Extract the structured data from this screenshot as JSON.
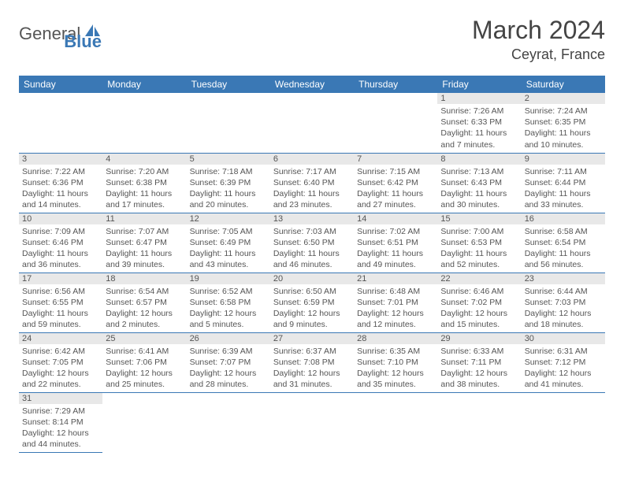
{
  "logo": {
    "general": "General",
    "blue": "Blue"
  },
  "title": "March 2024",
  "location": "Ceyrat, France",
  "weekdays": [
    "Sunday",
    "Monday",
    "Tuesday",
    "Wednesday",
    "Thursday",
    "Friday",
    "Saturday"
  ],
  "colors": {
    "header_bg": "#3a78b5",
    "header_fg": "#ffffff",
    "daynum_bg": "#e8e8e8",
    "text": "#555555",
    "border": "#3a78b5"
  },
  "fonts": {
    "title_size": 32,
    "location_size": 18,
    "weekday_size": 12,
    "cell_size": 10.5
  },
  "cells": [
    [
      null,
      null,
      null,
      null,
      null,
      {
        "n": "1",
        "sr": "7:26 AM",
        "ss": "6:33 PM",
        "dl": "11 hours and 7 minutes."
      },
      {
        "n": "2",
        "sr": "7:24 AM",
        "ss": "6:35 PM",
        "dl": "11 hours and 10 minutes."
      }
    ],
    [
      {
        "n": "3",
        "sr": "7:22 AM",
        "ss": "6:36 PM",
        "dl": "11 hours and 14 minutes."
      },
      {
        "n": "4",
        "sr": "7:20 AM",
        "ss": "6:38 PM",
        "dl": "11 hours and 17 minutes."
      },
      {
        "n": "5",
        "sr": "7:18 AM",
        "ss": "6:39 PM",
        "dl": "11 hours and 20 minutes."
      },
      {
        "n": "6",
        "sr": "7:17 AM",
        "ss": "6:40 PM",
        "dl": "11 hours and 23 minutes."
      },
      {
        "n": "7",
        "sr": "7:15 AM",
        "ss": "6:42 PM",
        "dl": "11 hours and 27 minutes."
      },
      {
        "n": "8",
        "sr": "7:13 AM",
        "ss": "6:43 PM",
        "dl": "11 hours and 30 minutes."
      },
      {
        "n": "9",
        "sr": "7:11 AM",
        "ss": "6:44 PM",
        "dl": "11 hours and 33 minutes."
      }
    ],
    [
      {
        "n": "10",
        "sr": "7:09 AM",
        "ss": "6:46 PM",
        "dl": "11 hours and 36 minutes."
      },
      {
        "n": "11",
        "sr": "7:07 AM",
        "ss": "6:47 PM",
        "dl": "11 hours and 39 minutes."
      },
      {
        "n": "12",
        "sr": "7:05 AM",
        "ss": "6:49 PM",
        "dl": "11 hours and 43 minutes."
      },
      {
        "n": "13",
        "sr": "7:03 AM",
        "ss": "6:50 PM",
        "dl": "11 hours and 46 minutes."
      },
      {
        "n": "14",
        "sr": "7:02 AM",
        "ss": "6:51 PM",
        "dl": "11 hours and 49 minutes."
      },
      {
        "n": "15",
        "sr": "7:00 AM",
        "ss": "6:53 PM",
        "dl": "11 hours and 52 minutes."
      },
      {
        "n": "16",
        "sr": "6:58 AM",
        "ss": "6:54 PM",
        "dl": "11 hours and 56 minutes."
      }
    ],
    [
      {
        "n": "17",
        "sr": "6:56 AM",
        "ss": "6:55 PM",
        "dl": "11 hours and 59 minutes."
      },
      {
        "n": "18",
        "sr": "6:54 AM",
        "ss": "6:57 PM",
        "dl": "12 hours and 2 minutes."
      },
      {
        "n": "19",
        "sr": "6:52 AM",
        "ss": "6:58 PM",
        "dl": "12 hours and 5 minutes."
      },
      {
        "n": "20",
        "sr": "6:50 AM",
        "ss": "6:59 PM",
        "dl": "12 hours and 9 minutes."
      },
      {
        "n": "21",
        "sr": "6:48 AM",
        "ss": "7:01 PM",
        "dl": "12 hours and 12 minutes."
      },
      {
        "n": "22",
        "sr": "6:46 AM",
        "ss": "7:02 PM",
        "dl": "12 hours and 15 minutes."
      },
      {
        "n": "23",
        "sr": "6:44 AM",
        "ss": "7:03 PM",
        "dl": "12 hours and 18 minutes."
      }
    ],
    [
      {
        "n": "24",
        "sr": "6:42 AM",
        "ss": "7:05 PM",
        "dl": "12 hours and 22 minutes."
      },
      {
        "n": "25",
        "sr": "6:41 AM",
        "ss": "7:06 PM",
        "dl": "12 hours and 25 minutes."
      },
      {
        "n": "26",
        "sr": "6:39 AM",
        "ss": "7:07 PM",
        "dl": "12 hours and 28 minutes."
      },
      {
        "n": "27",
        "sr": "6:37 AM",
        "ss": "7:08 PM",
        "dl": "12 hours and 31 minutes."
      },
      {
        "n": "28",
        "sr": "6:35 AM",
        "ss": "7:10 PM",
        "dl": "12 hours and 35 minutes."
      },
      {
        "n": "29",
        "sr": "6:33 AM",
        "ss": "7:11 PM",
        "dl": "12 hours and 38 minutes."
      },
      {
        "n": "30",
        "sr": "6:31 AM",
        "ss": "7:12 PM",
        "dl": "12 hours and 41 minutes."
      }
    ],
    [
      {
        "n": "31",
        "sr": "7:29 AM",
        "ss": "8:14 PM",
        "dl": "12 hours and 44 minutes."
      },
      null,
      null,
      null,
      null,
      null,
      null
    ]
  ],
  "labels": {
    "sunrise": "Sunrise:",
    "sunset": "Sunset:",
    "daylight": "Daylight:"
  }
}
